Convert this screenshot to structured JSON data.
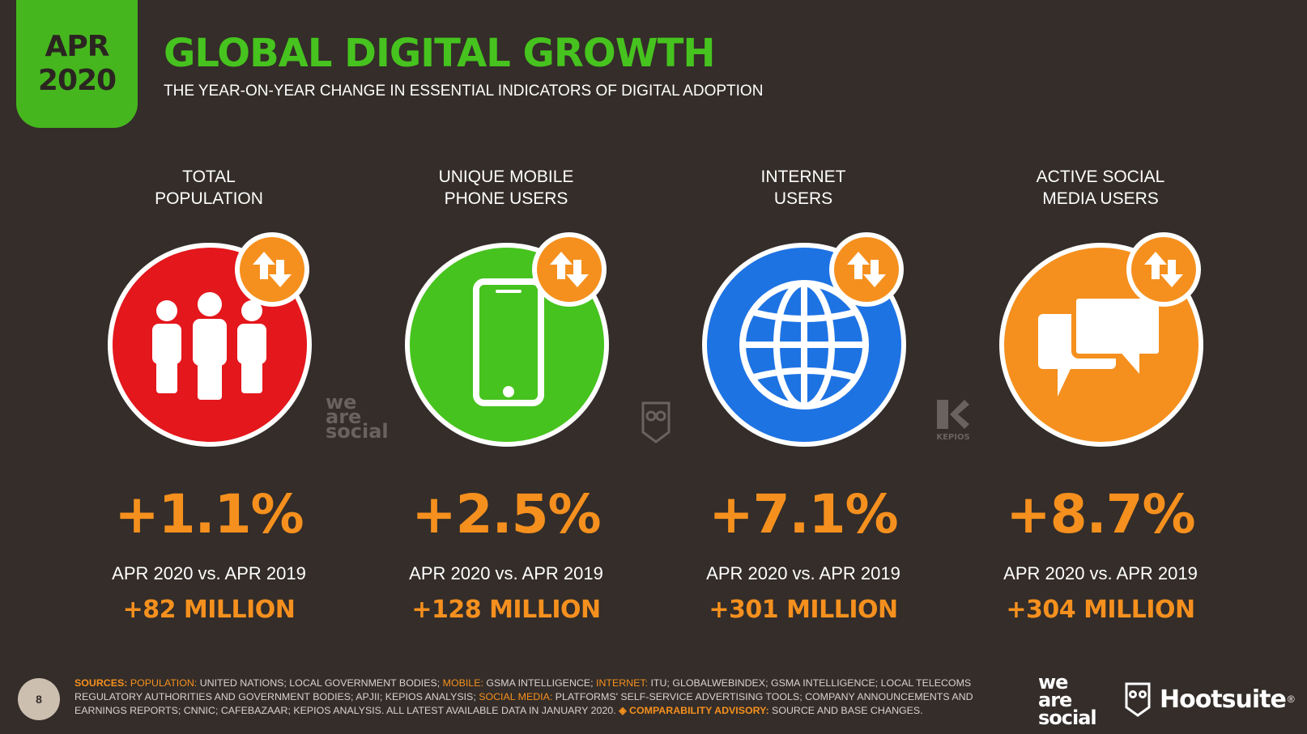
{
  "header": {
    "date_month": "APR",
    "date_year": "2020",
    "title": "GLOBAL DIGITAL GROWTH",
    "subtitle": "THE YEAR-ON-YEAR CHANGE IN ESSENTIAL INDICATORS OF DIGITAL ADOPTION"
  },
  "indicators": [
    {
      "label_line1": "TOTAL",
      "label_line2": "POPULATION",
      "icon": "people-icon",
      "color": "#e3171c",
      "percent": "+1.1%",
      "comparison": "APR 2020 vs. APR 2019",
      "absolute": "+82 MILLION"
    },
    {
      "label_line1": "UNIQUE MOBILE",
      "label_line2": "PHONE USERS",
      "icon": "mobile-phone-icon",
      "color": "#46c31e",
      "percent": "+2.5%",
      "comparison": "APR 2020 vs. APR 2019",
      "absolute": "+128 MILLION"
    },
    {
      "label_line1": "INTERNET",
      "label_line2": "USERS",
      "icon": "globe-icon",
      "color": "#1e73e3",
      "percent": "+7.1%",
      "comparison": "APR 2020 vs. APR 2019",
      "absolute": "+301 MILLION"
    },
    {
      "label_line1": "ACTIVE SOCIAL",
      "label_line2": "MEDIA USERS",
      "icon": "chat-bubbles-icon",
      "color": "#f5901e",
      "percent": "+8.7%",
      "comparison": "APR 2020 vs. APR 2019",
      "absolute": "+304 MILLION"
    }
  ],
  "badge_icon": "up-down-arrows-icon",
  "watermarks": {
    "we": "we",
    "are": "are",
    "social": "social",
    "kepios": "KEPIOS"
  },
  "footer": {
    "page_number": "8",
    "sources_label": "SOURCES:",
    "population_label": "POPULATION:",
    "population_text": " UNITED NATIONS; LOCAL GOVERNMENT BODIES; ",
    "mobile_label": "MOBILE:",
    "mobile_text": " GSMA INTELLIGENCE; ",
    "internet_label": "INTERNET:",
    "internet_text": " ITU; GLOBALWEBINDEX; GSMA INTELLIGENCE; LOCAL TELECOMS REGULATORY AUTHORITIES AND GOVERNMENT BODIES; APJII; KEPIOS ANALYSIS; ",
    "social_label": "SOCIAL MEDIA:",
    "social_text": " PLATFORMS' SELF-SERVICE ADVERTISING TOOLS; COMPANY ANNOUNCEMENTS AND EARNINGS REPORTS; CNNIC; CAFEBAZAAR; KEPIOS ANALYSIS. ALL LATEST AVAILABLE DATA IN JANUARY 2020. ",
    "advisory_label": "◈ COMPARABILITY ADVISORY:",
    "advisory_text": " SOURCE AND BASE CHANGES.",
    "logo_we": "we",
    "logo_are": "are",
    "logo_social": "social",
    "logo_hootsuite": "Hootsuite",
    "registered": "®"
  }
}
